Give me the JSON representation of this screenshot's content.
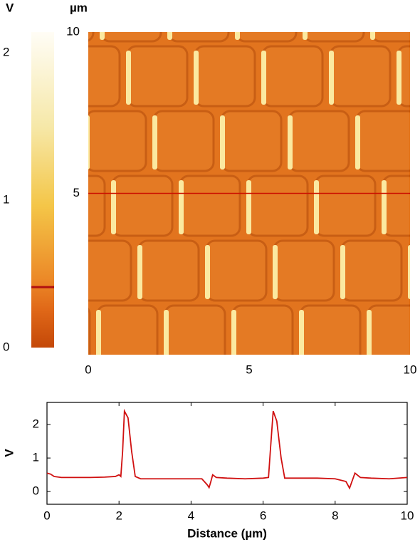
{
  "chart_data": [
    {
      "type": "image",
      "unit": "µm",
      "xlim": [
        0,
        10
      ],
      "ylim": [
        0,
        10
      ],
      "xticks": [
        0,
        5,
        10
      ],
      "yticks": [
        5,
        10
      ],
      "profile_y": 5,
      "profile_color": "#cc1100",
      "colorbar": {
        "title": "V",
        "lim": [
          0,
          2.14
        ],
        "ticks": [
          0,
          1,
          2
        ],
        "marker": 0.41,
        "marker_color": "#b01010"
      }
    },
    {
      "type": "line",
      "xlabel": "Distance (µm)",
      "ylabel": "V",
      "xlim": [
        0,
        10
      ],
      "ylim": [
        -0.38,
        2.66
      ],
      "xticks": [
        0,
        2,
        4,
        6,
        8,
        10
      ],
      "yticks": [
        0,
        1,
        2
      ],
      "series": [
        {
          "color": "#d01010",
          "x": [
            0,
            0.1,
            0.2,
            0.4,
            0.8,
            1.2,
            1.6,
            1.9,
            2.0,
            2.05,
            2.1,
            2.15,
            2.25,
            2.35,
            2.45,
            2.6,
            3.0,
            3.5,
            4.0,
            4.3,
            4.45,
            4.5,
            4.55,
            4.6,
            4.7,
            5.0,
            5.5,
            6.0,
            6.15,
            6.2,
            6.28,
            6.38,
            6.5,
            6.6,
            7.0,
            7.5,
            8.0,
            8.3,
            8.4,
            8.45,
            8.55,
            8.7,
            9.0,
            9.5,
            10
          ],
          "values": [
            0.55,
            0.52,
            0.45,
            0.42,
            0.42,
            0.42,
            0.43,
            0.45,
            0.5,
            0.45,
            1.2,
            2.4,
            2.2,
            1.2,
            0.45,
            0.38,
            0.38,
            0.38,
            0.38,
            0.38,
            0.2,
            0.12,
            0.3,
            0.5,
            0.42,
            0.4,
            0.38,
            0.4,
            0.42,
            1.2,
            2.4,
            2.1,
            1.0,
            0.4,
            0.4,
            0.4,
            0.38,
            0.3,
            0.1,
            0.25,
            0.55,
            0.42,
            0.4,
            0.38,
            0.42
          ]
        }
      ]
    }
  ]
}
